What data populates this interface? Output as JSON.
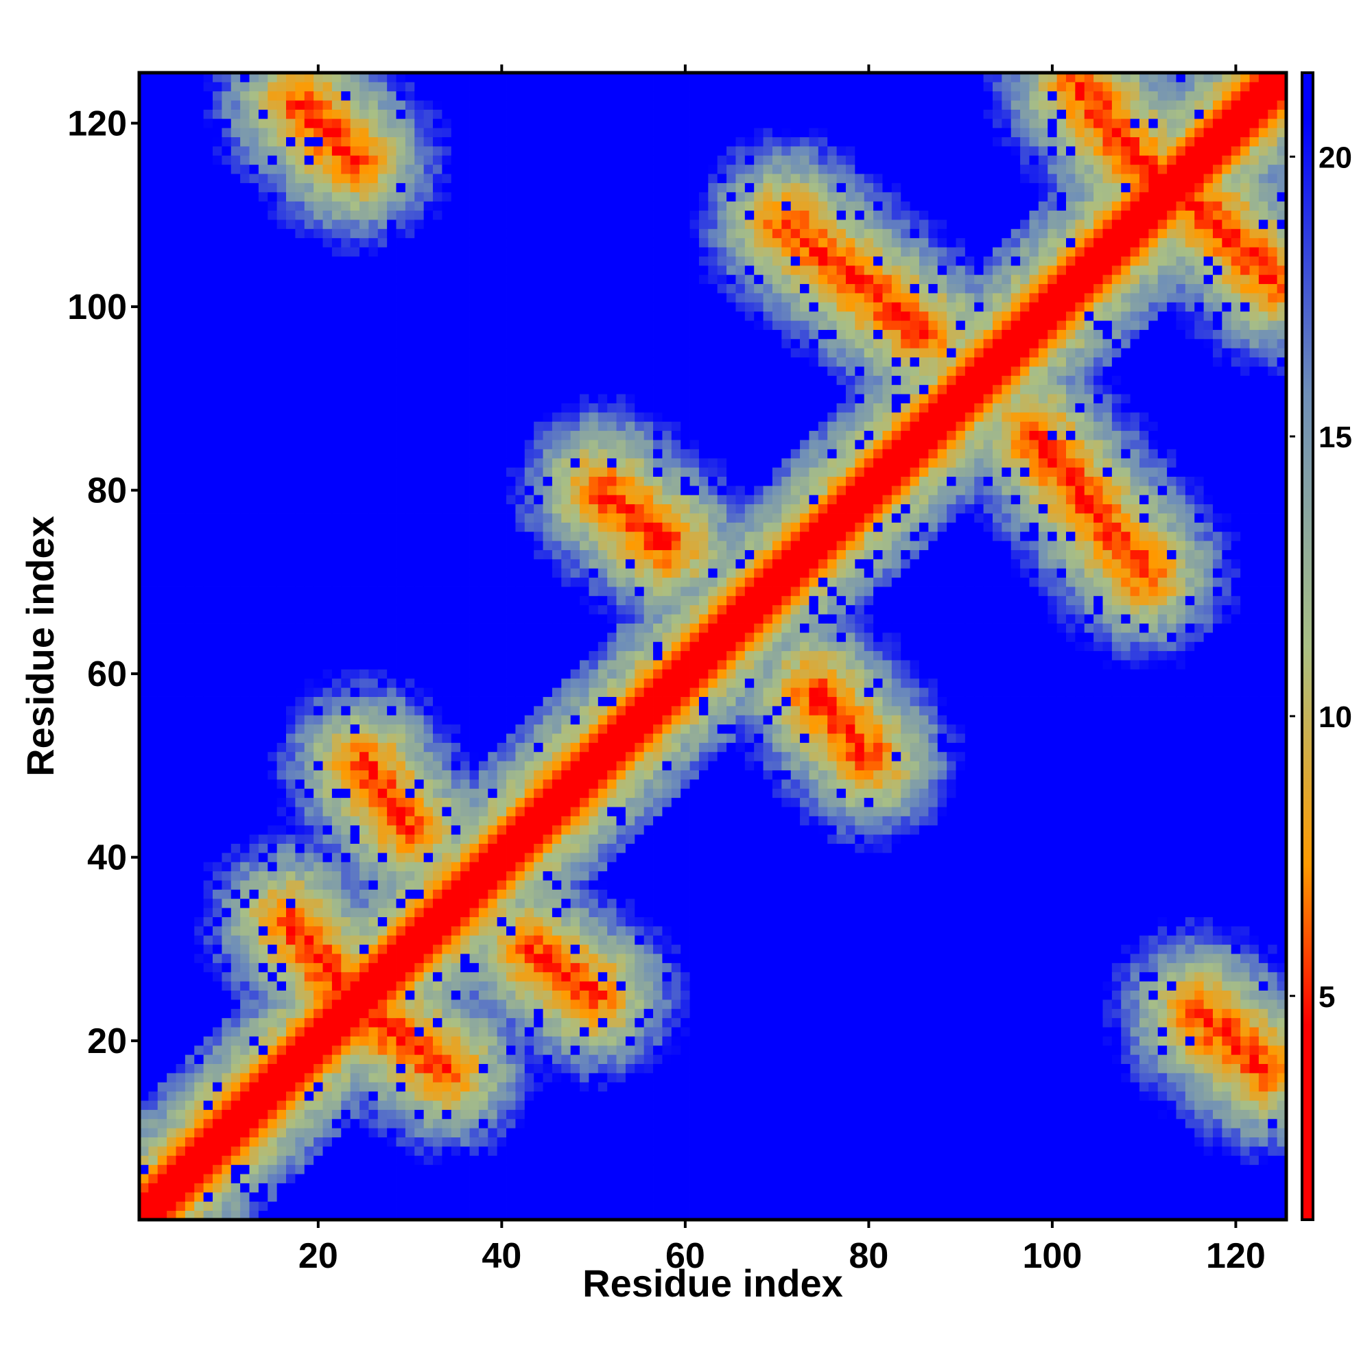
{
  "chart_data": {
    "type": "heatmap",
    "title": "",
    "xlabel": "Residue index",
    "ylabel": "Residue index",
    "n_residues": 125,
    "xlim": [
      1,
      125
    ],
    "ylim": [
      1,
      125
    ],
    "x_ticks": [
      20,
      40,
      60,
      80,
      100,
      120
    ],
    "y_ticks": [
      20,
      40,
      60,
      80,
      100,
      120
    ],
    "colorbar": {
      "range": [
        1,
        21.5
      ],
      "ticks": [
        5,
        10,
        15,
        20
      ],
      "colors": {
        "low": "#ff0000",
        "mid_low": "#ff9a00",
        "mid": "#a9bf85",
        "mid_high": "#6f8fb8",
        "high": "#0000ff"
      }
    },
    "contact_features": [
      {
        "kind": "diagonal",
        "from": [
          1,
          1
        ],
        "to": [
          125,
          125
        ]
      },
      {
        "kind": "anti-parallel",
        "from": [
          18,
          122
        ],
        "to": [
          24,
          116
        ]
      },
      {
        "kind": "anti-parallel",
        "from": [
          71,
          109
        ],
        "to": [
          86,
          97
        ]
      },
      {
        "kind": "anti-parallel",
        "from": [
          103,
          124
        ],
        "to": [
          111,
          114
        ]
      },
      {
        "kind": "anti-parallel",
        "from": [
          113,
          114
        ],
        "to": [
          124,
          103
        ]
      },
      {
        "kind": "anti-parallel",
        "from": [
          98,
          86
        ],
        "to": [
          110,
          71
        ]
      },
      {
        "kind": "anti-parallel",
        "from": [
          51,
          80
        ],
        "to": [
          58,
          74
        ]
      },
      {
        "kind": "anti-parallel",
        "from": [
          74,
          58
        ],
        "to": [
          80,
          51
        ]
      },
      {
        "kind": "anti-parallel",
        "from": [
          25,
          50
        ],
        "to": [
          30,
          43
        ]
      },
      {
        "kind": "anti-parallel",
        "from": [
          43,
          30
        ],
        "to": [
          50,
          25
        ]
      },
      {
        "kind": "anti-parallel",
        "from": [
          17,
          33
        ],
        "to": [
          23,
          25
        ]
      },
      {
        "kind": "anti-parallel",
        "from": [
          25,
          23
        ],
        "to": [
          34,
          17
        ]
      },
      {
        "kind": "anti-parallel",
        "from": [
          116,
          23
        ],
        "to": [
          123,
          17
        ]
      }
    ]
  }
}
